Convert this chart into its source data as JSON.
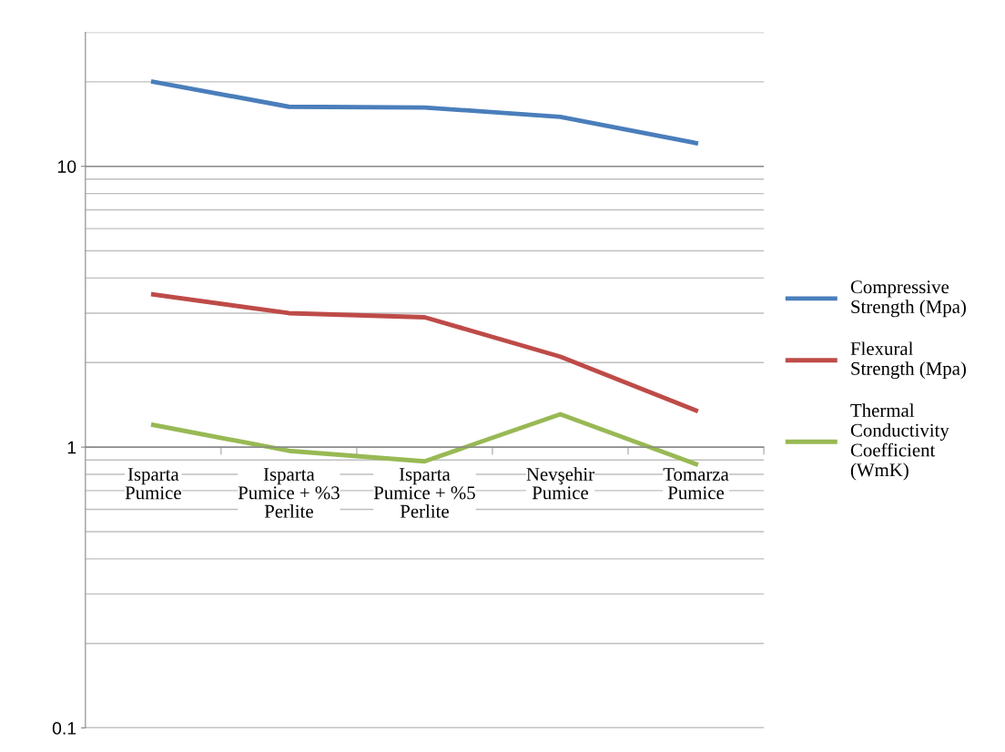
{
  "chart_data": {
    "type": "line",
    "categories": [
      "Isparta Pumice",
      "Isparta Pumice + %3 Perlite",
      "Isparta Pumice + %5 Perlite",
      "Nevşehir Pumice",
      "Tomarza Pumice"
    ],
    "series": [
      {
        "name": "Compressive Strength (Mpa)",
        "color": "#4a7ebb",
        "values": [
          20,
          16.3,
          16.2,
          15,
          12.1
        ]
      },
      {
        "name": "Flexural Strength (Mpa)",
        "color": "#be4b48",
        "values": [
          3.5,
          3.0,
          2.9,
          2.1,
          1.35
        ]
      },
      {
        "name": "Thermal Conductivity Coefficient (WmK)",
        "color": "#98b954",
        "values": [
          1.2,
          0.97,
          0.89,
          1.31,
          0.87
        ]
      }
    ],
    "log": "y",
    "ylim": [
      0.1,
      30
    ],
    "yticks": [
      0.1,
      1,
      10
    ],
    "grid": "y",
    "legend": "right",
    "marker": "none",
    "line_style": "solid"
  }
}
